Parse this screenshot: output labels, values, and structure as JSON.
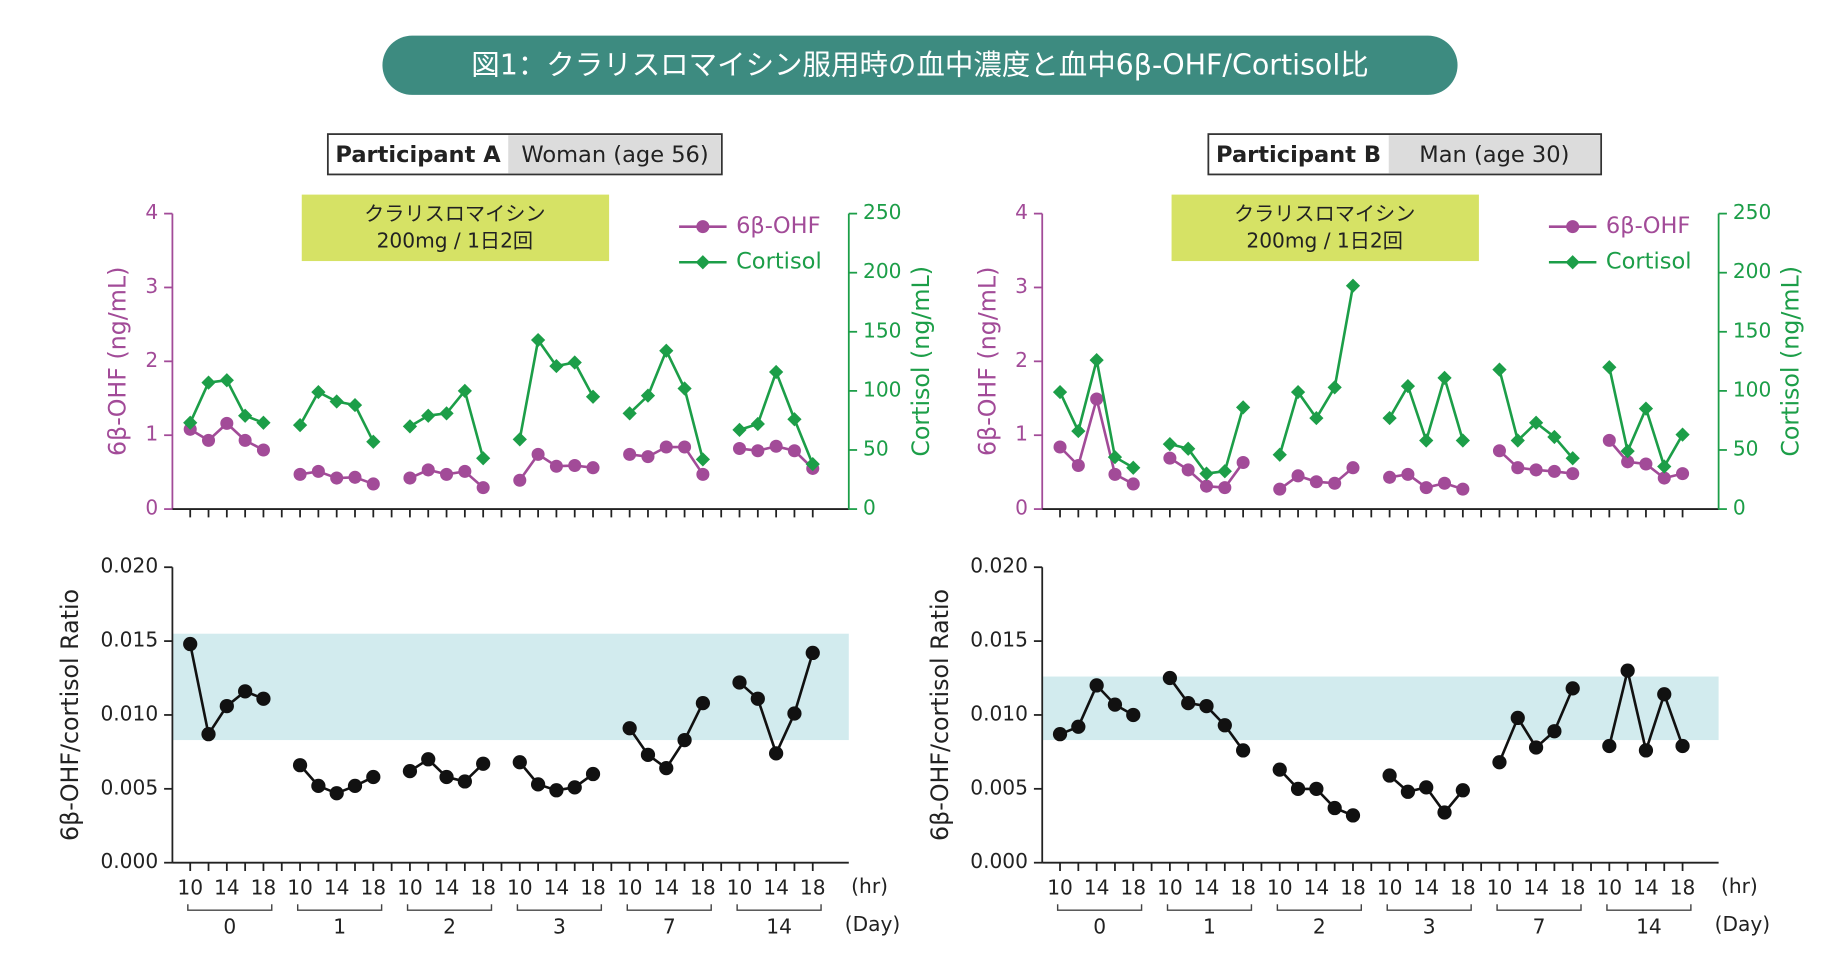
{
  "title": "図1：クラリスロマイシン服用時の血中濃度と血中6β-OHF/Cortisol比",
  "panels": [
    {
      "participant": "Participant A",
      "profile": "Woman (age 56)"
    },
    {
      "participant": "Participant B",
      "profile": "Man (age 30)"
    }
  ],
  "chart_data": [
    {
      "type": "line",
      "annotation": [
        "クラリスロマイシン",
        "200mg / 1日2回"
      ],
      "ylabel": "6β-OHF (ng/mL)",
      "y2label": "Cortisol (ng/mL)",
      "ylim": [
        0,
        4
      ],
      "yticks": [
        0,
        1,
        2,
        3,
        4
      ],
      "y2lim": [
        0,
        250
      ],
      "y2ticks": [
        0,
        50,
        100,
        150,
        200,
        250
      ],
      "legend": "upper right",
      "series": [
        {
          "name": "6β-OHF",
          "color": "#a24b98",
          "marker": "circle",
          "values": [
            1.08,
            0.93,
            1.16,
            0.93,
            0.8,
            null,
            0.47,
            0.51,
            0.42,
            0.43,
            0.34,
            null,
            0.42,
            0.53,
            0.47,
            0.51,
            0.29,
            null,
            0.39,
            0.74,
            0.58,
            0.59,
            0.56,
            null,
            0.74,
            0.71,
            0.84,
            0.84,
            0.47,
            null,
            0.82,
            0.79,
            0.85,
            0.79,
            0.55
          ]
        },
        {
          "name": "Cortisol",
          "color": "#1c9e48",
          "marker": "diamond",
          "axis": "y2",
          "values": [
            73,
            107,
            109,
            79,
            73,
            null,
            71,
            99,
            91,
            88,
            57,
            null,
            70,
            79,
            81,
            100,
            43,
            null,
            59,
            143,
            121,
            124,
            95,
            null,
            81,
            96,
            134,
            102,
            42,
            null,
            67,
            72,
            116,
            76,
            38
          ]
        }
      ]
    },
    {
      "type": "line",
      "ylabel": "6β-OHF/cortisol Ratio",
      "categories": [
        "10",
        null,
        "14",
        null,
        "18",
        null,
        "10",
        null,
        "14",
        null,
        "18",
        null,
        "10",
        null,
        "14",
        null,
        "18",
        null,
        "10",
        null,
        "14",
        null,
        "18",
        null,
        "10",
        null,
        "14",
        null,
        "18",
        null,
        "10",
        null,
        "14",
        null,
        "18"
      ],
      "x_unit": "(hr)",
      "group_labels": [
        "0",
        "1",
        "2",
        "3",
        "7",
        "14"
      ],
      "group_unit": "(Day)",
      "ylim": [
        0,
        0.02
      ],
      "yticks": [
        {
          "value": 0,
          "label": "0.000"
        },
        {
          "value": 0.005,
          "label": "0.005"
        },
        {
          "value": 0.01,
          "label": "0.010"
        },
        {
          "value": 0.015,
          "label": "0.015"
        },
        {
          "value": 0.02,
          "label": "0.020"
        }
      ],
      "reference_band": [
        0.0083,
        0.0155
      ],
      "band_color": "#d2ebee",
      "series": [
        {
          "color": "#111111",
          "marker": "circle",
          "values": [
            0.0148,
            0.0087,
            0.0106,
            0.0116,
            0.0111,
            null,
            0.0066,
            0.0052,
            0.0047,
            0.0052,
            0.0058,
            null,
            0.0062,
            0.007,
            0.0058,
            0.0055,
            0.0067,
            null,
            0.0068,
            0.0053,
            0.0049,
            0.0051,
            0.006,
            null,
            0.0091,
            0.0073,
            0.0064,
            0.0083,
            0.0108,
            null,
            0.0122,
            0.0111,
            0.0074,
            0.0101,
            0.0142
          ]
        }
      ]
    },
    {
      "type": "line",
      "annotation": [
        "クラリスロマイシン",
        "200mg / 1日2回"
      ],
      "ylabel": "6β-OHF (ng/mL)",
      "y2label": "Cortisol (ng/mL)",
      "ylim": [
        0,
        4
      ],
      "yticks": [
        0,
        1,
        2,
        3,
        4
      ],
      "y2lim": [
        0,
        250
      ],
      "y2ticks": [
        0,
        50,
        100,
        150,
        200,
        250
      ],
      "legend": "upper right",
      "series": [
        {
          "name": "6β-OHF",
          "color": "#a24b98",
          "marker": "circle",
          "values": [
            0.84,
            0.59,
            1.49,
            0.47,
            0.34,
            null,
            0.69,
            0.53,
            0.31,
            0.29,
            0.63,
            null,
            0.27,
            0.45,
            0.37,
            0.35,
            0.56,
            null,
            0.43,
            0.47,
            0.29,
            0.35,
            0.27,
            null,
            0.79,
            0.56,
            0.53,
            0.51,
            0.48,
            null,
            0.93,
            0.64,
            0.61,
            0.42,
            0.48
          ]
        },
        {
          "name": "Cortisol",
          "color": "#1c9e48",
          "marker": "diamond",
          "axis": "y2",
          "values": [
            99,
            66,
            126,
            44,
            35,
            null,
            55,
            51,
            30,
            32,
            86,
            null,
            46,
            99,
            77,
            103,
            189,
            null,
            77,
            104,
            58,
            111,
            58,
            null,
            118,
            58,
            73,
            61,
            43,
            null,
            120,
            49,
            85,
            36,
            63
          ]
        }
      ]
    },
    {
      "type": "line",
      "ylabel": "6β-OHF/cortisol Ratio",
      "categories": [
        "10",
        null,
        "14",
        null,
        "18",
        null,
        "10",
        null,
        "14",
        null,
        "18",
        null,
        "10",
        null,
        "14",
        null,
        "18",
        null,
        "10",
        null,
        "14",
        null,
        "18",
        null,
        "10",
        null,
        "14",
        null,
        "18",
        null,
        "10",
        null,
        "14",
        null,
        "18"
      ],
      "x_unit": "(hr)",
      "group_labels": [
        "0",
        "1",
        "2",
        "3",
        "7",
        "14"
      ],
      "group_unit": "(Day)",
      "ylim": [
        0,
        0.02
      ],
      "yticks": [
        {
          "value": 0,
          "label": "0.000"
        },
        {
          "value": 0.005,
          "label": "0.005"
        },
        {
          "value": 0.01,
          "label": "0.010"
        },
        {
          "value": 0.015,
          "label": "0.015"
        },
        {
          "value": 0.02,
          "label": "0.020"
        }
      ],
      "reference_band": [
        0.0083,
        0.0126
      ],
      "band_color": "#d2ebee",
      "series": [
        {
          "color": "#111111",
          "marker": "circle",
          "values": [
            0.0087,
            0.0092,
            0.012,
            0.0107,
            0.01,
            null,
            0.0125,
            0.0108,
            0.0106,
            0.0093,
            0.0076,
            null,
            0.0063,
            0.005,
            0.005,
            0.0037,
            0.0032,
            null,
            0.0059,
            0.0048,
            0.0051,
            0.0034,
            0.0049,
            null,
            0.0068,
            0.0098,
            0.0078,
            0.0089,
            0.0118,
            null,
            0.0079,
            0.013,
            0.0076,
            0.0114,
            0.0079
          ]
        }
      ]
    }
  ]
}
